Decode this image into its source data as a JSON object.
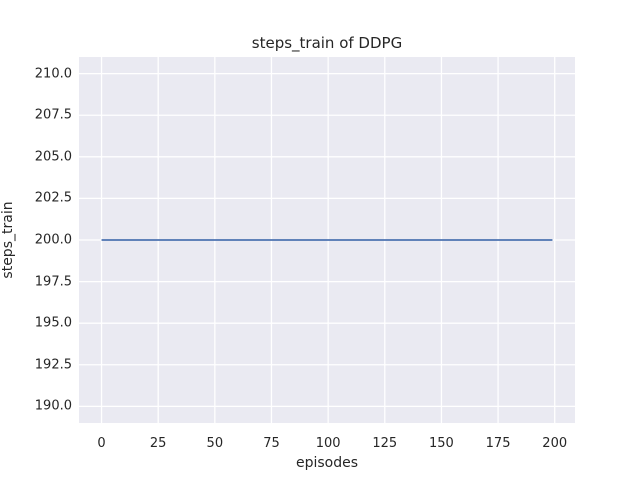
{
  "chart_data": {
    "type": "line",
    "title": "steps_train of DDPG",
    "xlabel": "episodes",
    "ylabel": "steps_train",
    "xlim": [
      -9.95,
      208.95
    ],
    "ylim": [
      189,
      211
    ],
    "xtick_values": [
      0,
      25,
      50,
      75,
      100,
      125,
      150,
      175,
      200
    ],
    "xtick_labels": [
      "0",
      "25",
      "50",
      "75",
      "100",
      "125",
      "150",
      "175",
      "200"
    ],
    "ytick_values": [
      190,
      192.5,
      195,
      197.5,
      200,
      202.5,
      205,
      207.5,
      210
    ],
    "ytick_labels": [
      "190.0",
      "192.5",
      "195.0",
      "197.5",
      "200.0",
      "202.5",
      "205.0",
      "207.5",
      "210.0"
    ],
    "grid": true,
    "legend": "none",
    "plot_background": "#eaeaf2",
    "grid_color": "#ffffff",
    "text_color": "#262626",
    "series": [
      {
        "name": "steps_train",
        "color": "#4c72b0",
        "line_width": 1.8,
        "x": [
          0,
          199
        ],
        "y": [
          200,
          200
        ]
      }
    ]
  }
}
